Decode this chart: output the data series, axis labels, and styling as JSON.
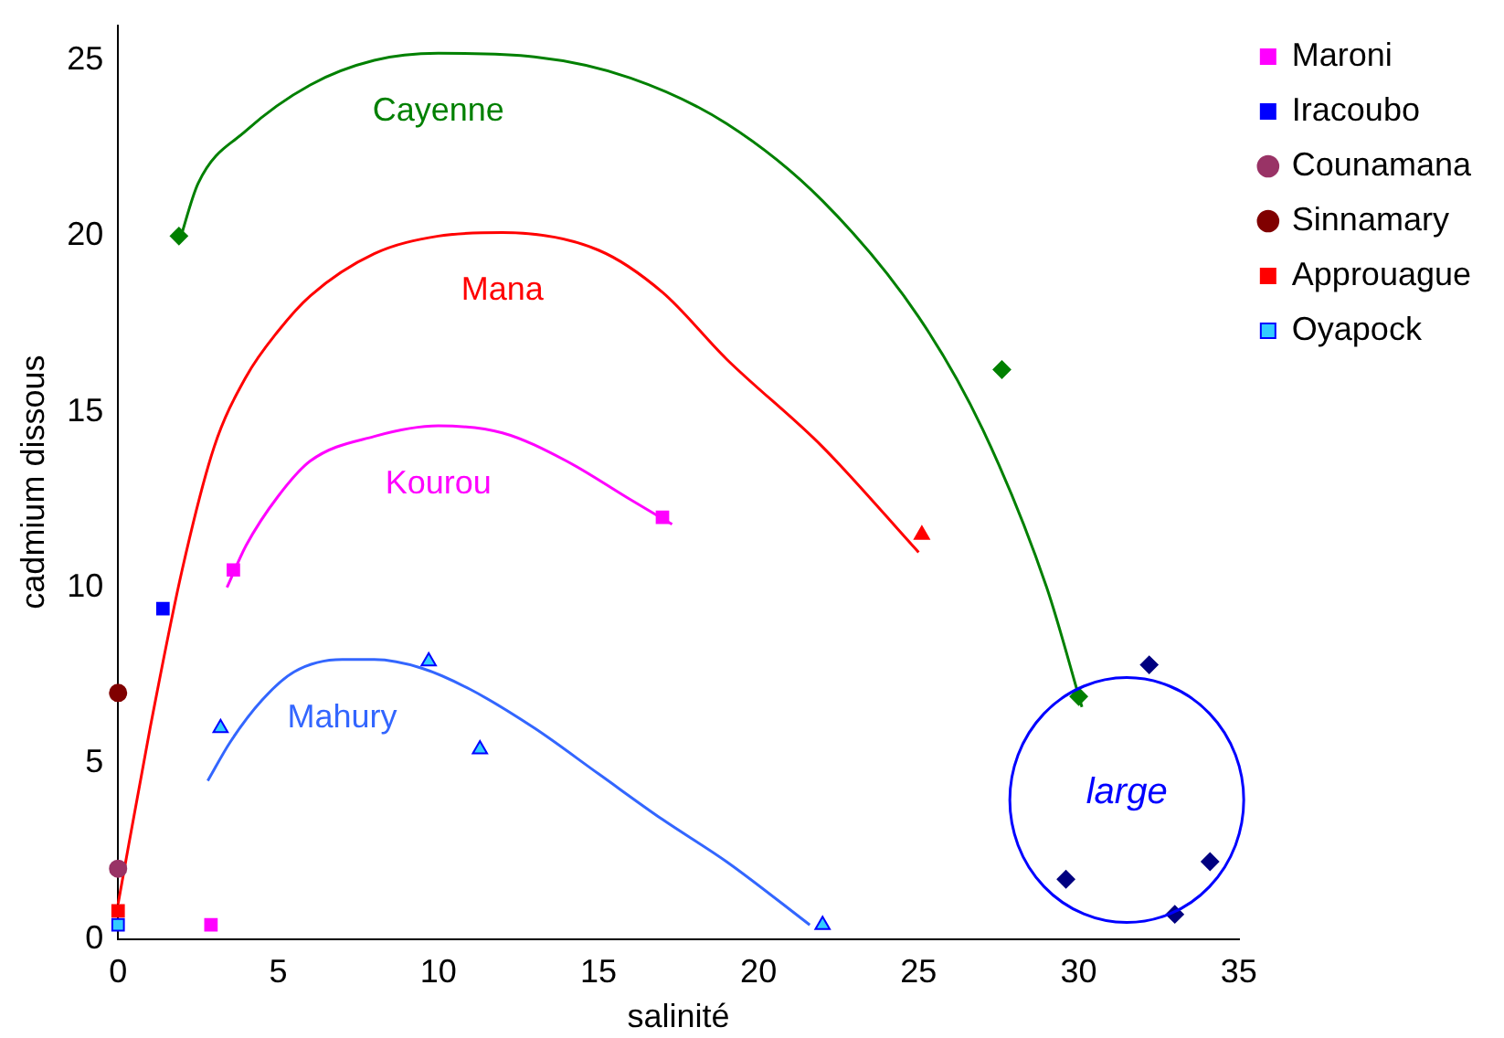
{
  "chart_data": {
    "type": "scatter",
    "xlabel": "salinité",
    "ylabel": "cadmium dissous",
    "xlim": [
      0,
      35
    ],
    "xticks": [
      0,
      5,
      10,
      15,
      20,
      25,
      30,
      35
    ],
    "ylim": [
      0,
      26
    ],
    "yticks": [
      0,
      5,
      10,
      15,
      20,
      25
    ],
    "grid": false,
    "legend": "top right",
    "series": [
      {
        "name": "Maroni",
        "color": "#ff00ff",
        "marker": "square",
        "x": [
          2.9
        ],
        "values": [
          0.4
        ]
      },
      {
        "name": "Iracoubo",
        "color": "#0000ff",
        "marker": "square",
        "x": [
          1.4
        ],
        "values": [
          9.4
        ]
      },
      {
        "name": "Counamana",
        "color": "#993366",
        "marker": "circle",
        "x": [
          0
        ],
        "values": [
          2.0
        ]
      },
      {
        "name": "Sinnamary",
        "color": "#800000",
        "marker": "circle",
        "x": [
          0
        ],
        "values": [
          7.0
        ]
      },
      {
        "name": "Approuague",
        "color": "#ff0000",
        "marker": "square",
        "x": [
          0
        ],
        "values": [
          0.8
        ]
      },
      {
        "name": "Oyapock",
        "color": "#33ccff",
        "marker": "square",
        "x": [
          0
        ],
        "values": [
          0.4
        ]
      },
      {
        "color": "#008000",
        "marker": "diamond",
        "x": [
          1.9,
          27.6,
          30.0
        ],
        "values": [
          20.0,
          16.2,
          6.9
        ]
      },
      {
        "color": "#ff0000",
        "marker": "triangle",
        "x": [
          25.1
        ],
        "values": [
          11.5
        ]
      },
      {
        "color": "#ff00ff",
        "marker": "square",
        "x": [
          3.6,
          17.0
        ],
        "values": [
          10.5,
          12.0
        ]
      },
      {
        "color": "#33ccff",
        "marker": "triangle",
        "x": [
          3.2,
          9.7,
          11.3,
          22.0
        ],
        "values": [
          6.0,
          7.9,
          5.4,
          0.4
        ]
      },
      {
        "color": "#000080",
        "marker": "diamond",
        "x": [
          29.6,
          32.2,
          33.0,
          34.1
        ],
        "values": [
          1.7,
          7.8,
          0.7,
          2.2
        ]
      },
      {
        "name": "Cayenne",
        "type": "line",
        "color": "#008000",
        "marker": "none",
        "x": [
          1.9,
          2.5,
          4,
          6,
          8,
          10,
          13,
          16,
          19,
          22,
          25,
          27,
          29,
          30.1
        ],
        "values": [
          19.8,
          21.5,
          23,
          24.3,
          25,
          25.2,
          25.1,
          24.5,
          23.2,
          21,
          17.7,
          14.5,
          10,
          6.6
        ]
      },
      {
        "name": "Mana",
        "type": "line",
        "color": "#ff0000",
        "marker": "none",
        "x": [
          0,
          1,
          2,
          3,
          4,
          5,
          6,
          8,
          10,
          12,
          15,
          17,
          19,
          22,
          25
        ],
        "values": [
          1,
          6,
          10.5,
          14,
          16,
          17.3,
          18.3,
          19.5,
          20,
          20.1,
          19.6,
          18.4,
          16.5,
          14,
          11
        ]
      },
      {
        "name": "Kourou",
        "type": "line",
        "color": "#ff00ff",
        "marker": "none",
        "x": [
          3.4,
          4,
          5,
          6,
          8,
          10,
          12,
          14,
          16,
          17.3
        ],
        "values": [
          10,
          11.2,
          12.6,
          13.6,
          14.3,
          14.6,
          14.4,
          13.6,
          12.5,
          11.8
        ]
      },
      {
        "name": "Mahury",
        "type": "line",
        "color": "#3366ff",
        "marker": "none",
        "x": [
          2.8,
          3.5,
          4.5,
          5.5,
          7,
          8,
          9.5,
          11,
          13,
          15,
          17,
          19,
          21.6
        ],
        "values": [
          4.5,
          5.6,
          6.8,
          7.6,
          7.95,
          7.95,
          7.7,
          7.1,
          6,
          4.7,
          3.4,
          2.2,
          0.4
        ]
      }
    ],
    "annotations": [
      "large"
    ]
  }
}
